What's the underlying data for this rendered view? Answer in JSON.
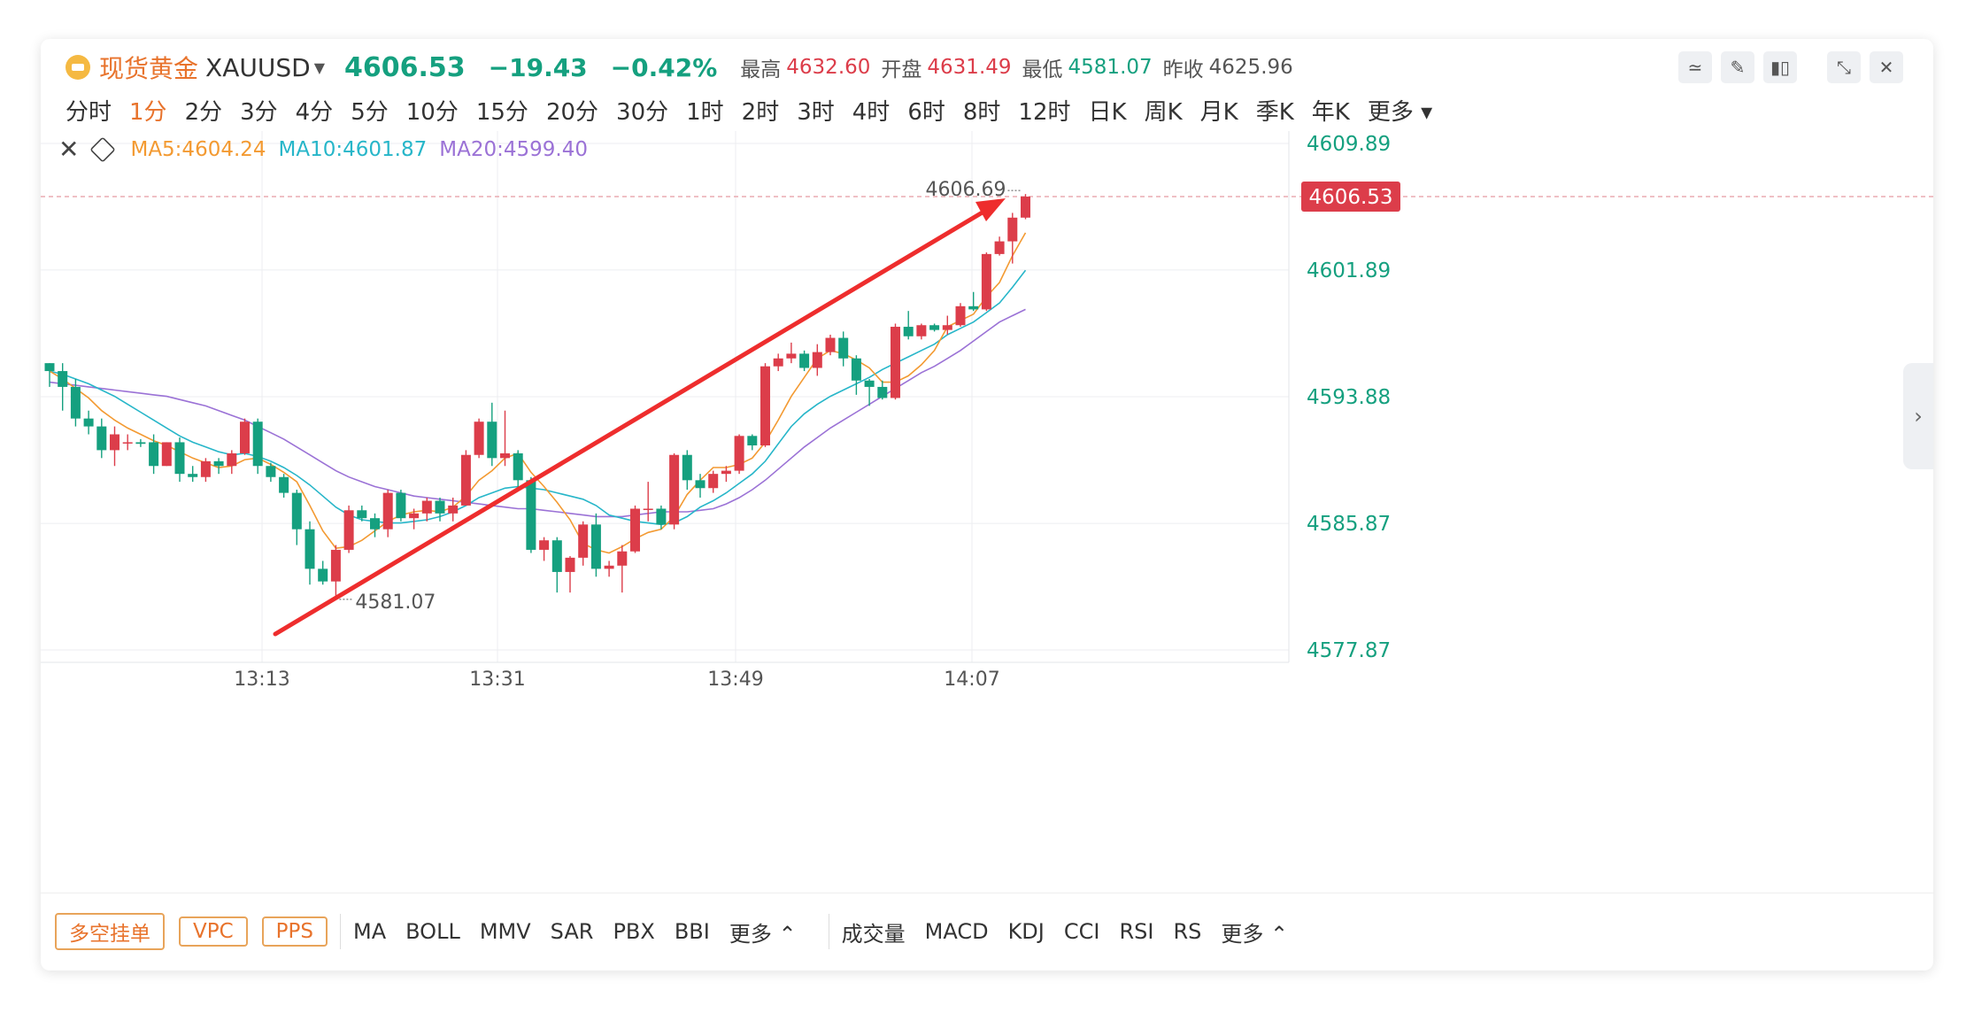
{
  "header": {
    "name": "现货黄金",
    "symbol": "XAUUSD",
    "price": "4606.53",
    "change": "−19.43",
    "change_pct": "−0.42%",
    "high_label": "最高",
    "high": "4632.60",
    "open_label": "开盘",
    "open": "4631.49",
    "low_label": "最低",
    "low": "4581.07",
    "prev_label": "昨收",
    "prev": "4625.96"
  },
  "periods": [
    "分时",
    "1分",
    "2分",
    "3分",
    "4分",
    "5分",
    "10分",
    "15分",
    "20分",
    "30分",
    "1时",
    "2时",
    "3时",
    "4时",
    "6时",
    "8时",
    "12时",
    "日K",
    "周K",
    "月K",
    "季K",
    "年K",
    "更多"
  ],
  "active_period": "1分",
  "ma_legend": {
    "ma5": "MA5:4604.24",
    "ma10": "MA10:4601.87",
    "ma20": "MA20:4599.40"
  },
  "bottom": {
    "buttons": [
      "多空挂单",
      "VPC",
      "PPS"
    ],
    "main_indicators": [
      "MA",
      "BOLL",
      "MMV",
      "SAR",
      "PBX",
      "BBI",
      "更多 ⌃"
    ],
    "sub_indicators": [
      "成交量",
      "MACD",
      "KDJ",
      "CCI",
      "RSI",
      "RS",
      "更多 ⌃"
    ]
  },
  "colors": {
    "up": "#dc3d4a",
    "down": "#15a07f",
    "ma5": "#f39a32",
    "ma10": "#27b6c9",
    "ma20": "#9b72d6",
    "arrow": "#ee2d2d"
  },
  "chart_data": {
    "type": "candlestick",
    "y_ticks": [
      "4609.89",
      "4601.89",
      "4593.88",
      "4585.87",
      "4577.87"
    ],
    "x_ticks": [
      "13:13",
      "13:31",
      "13:49",
      "14:07"
    ],
    "ylim": [
      4577.87,
      4609.89
    ],
    "current_price_label": "4606.53",
    "high_marker": "4606.69",
    "low_marker": "4581.07",
    "candles": [
      [
        4596,
        4596,
        4594.5,
        4595.5
      ],
      [
        4595.5,
        4596,
        4593,
        4594.5
      ],
      [
        4594.5,
        4595,
        4592,
        4592.5
      ],
      [
        4592.5,
        4593,
        4591.5,
        4592
      ],
      [
        4592,
        4592.5,
        4590,
        4590.5
      ],
      [
        4590.5,
        4592,
        4589.5,
        4591.5
      ],
      [
        4591,
        4591.5,
        4590.5,
        4591
      ],
      [
        4591,
        4591.2,
        4590.7,
        4590.9
      ],
      [
        4591,
        4591.5,
        4589,
        4589.5
      ],
      [
        4589.5,
        4591,
        4589.5,
        4591
      ],
      [
        4591,
        4591.3,
        4588.5,
        4589
      ],
      [
        4589,
        4589.5,
        4588.5,
        4588.8
      ],
      [
        4588.8,
        4590,
        4588.5,
        4589.8
      ],
      [
        4589.8,
        4590,
        4589,
        4589.5
      ],
      [
        4589.5,
        4590.5,
        4589,
        4590.3
      ],
      [
        4590.3,
        4592.5,
        4590.2,
        4592.3
      ],
      [
        4592.3,
        4592.5,
        4589,
        4589.5
      ],
      [
        4589.5,
        4589.7,
        4588.5,
        4588.8
      ],
      [
        4588.8,
        4589,
        4587.5,
        4587.8
      ],
      [
        4587.8,
        4588,
        4584.5,
        4585.5
      ],
      [
        4585.5,
        4586,
        4582,
        4583
      ],
      [
        4583,
        4583.5,
        4582,
        4582.2
      ],
      [
        4582.2,
        4584.5,
        4581.07,
        4584.2
      ],
      [
        4584.2,
        4587,
        4584,
        4586.7
      ],
      [
        4586.7,
        4587,
        4586,
        4586.2
      ],
      [
        4586.2,
        4586.5,
        4585,
        4585.5
      ],
      [
        4585.5,
        4588,
        4585,
        4587.8
      ],
      [
        4587.8,
        4588,
        4586,
        4586.2
      ],
      [
        4586.2,
        4586.8,
        4585.5,
        4586.5
      ],
      [
        4586.5,
        4587.5,
        4586,
        4587.3
      ],
      [
        4587.3,
        4587.5,
        4586,
        4586.5
      ],
      [
        4586.5,
        4587.5,
        4586,
        4587
      ],
      [
        4587,
        4590.5,
        4587,
        4590.2
      ],
      [
        4590.2,
        4592.5,
        4590,
        4592.3
      ],
      [
        4592.3,
        4593.5,
        4589.5,
        4590
      ],
      [
        4590,
        4593,
        4589.5,
        4590.3
      ],
      [
        4590.3,
        4590.5,
        4588,
        4588.6
      ],
      [
        4588.6,
        4588.8,
        4584,
        4584.2
      ],
      [
        4584.2,
        4585,
        4583.5,
        4584.8
      ],
      [
        4584.8,
        4585,
        4581.5,
        4582.8
      ],
      [
        4582.8,
        4583.8,
        4581.5,
        4583.7
      ],
      [
        4583.7,
        4586,
        4583.2,
        4585.8
      ],
      [
        4585.8,
        4586.5,
        4582.5,
        4583
      ],
      [
        4583,
        4583.5,
        4582.5,
        4583.2
      ],
      [
        4583.2,
        4584.5,
        4581.5,
        4584.1
      ],
      [
        4584.1,
        4587,
        4584,
        4586.8
      ],
      [
        4586.8,
        4588.5,
        4586,
        4586.8
      ],
      [
        4586.8,
        4587,
        4585.5,
        4585.8
      ],
      [
        4585.8,
        4590.3,
        4585.5,
        4590.2
      ],
      [
        4590.2,
        4590.5,
        4588,
        4588.6
      ],
      [
        4588.6,
        4589,
        4587.5,
        4588.1
      ],
      [
        4588.1,
        4589.2,
        4587.8,
        4589
      ],
      [
        4589,
        4589.5,
        4588.5,
        4589.2
      ],
      [
        4589.2,
        4591.5,
        4589,
        4591.4
      ],
      [
        4591.4,
        4591.5,
        4590.5,
        4590.8
      ],
      [
        4590.8,
        4596,
        4590.7,
        4595.8
      ],
      [
        4595.8,
        4596.6,
        4595.5,
        4596.3
      ],
      [
        4596.3,
        4597.3,
        4596,
        4596.6
      ],
      [
        4596.6,
        4596.8,
        4595.5,
        4595.7
      ],
      [
        4595.7,
        4597.2,
        4595.2,
        4596.7
      ],
      [
        4596.7,
        4597.8,
        4596.5,
        4597.6
      ],
      [
        4597.6,
        4598,
        4595.8,
        4596.3
      ],
      [
        4596.3,
        4596.5,
        4594,
        4594.9
      ],
      [
        4594.9,
        4595,
        4593.3,
        4594.5
      ],
      [
        4594.5,
        4594.9,
        4593.7,
        4593.8
      ],
      [
        4593.8,
        4598.5,
        4593.7,
        4598.3
      ],
      [
        4598.3,
        4599.3,
        4597.5,
        4597.7
      ],
      [
        4597.7,
        4598.5,
        4597.5,
        4598.4
      ],
      [
        4598.4,
        4598.5,
        4598,
        4598.1
      ],
      [
        4598.1,
        4599,
        4597.8,
        4598.4
      ],
      [
        4598.4,
        4599.8,
        4598.3,
        4599.6
      ],
      [
        4599.6,
        4600.5,
        4599.3,
        4599.4
      ],
      [
        4599.4,
        4603,
        4599.3,
        4602.9
      ],
      [
        4602.9,
        4604,
        4602.8,
        4603.7
      ],
      [
        4603.7,
        4605.5,
        4602.3,
        4605.2
      ],
      [
        4605.2,
        4606.69,
        4605.1,
        4606.53
      ]
    ],
    "ma5": [
      4595.5,
      4595,
      4594.4,
      4593.8,
      4593,
      4592.4,
      4591.9,
      4591.5,
      4591.1,
      4590.8,
      4590.4,
      4590,
      4589.7,
      4589.4,
      4589.5,
      4589.9,
      4590,
      4589.6,
      4589.1,
      4588.5,
      4587,
      4585.4,
      4584.3,
      4584.4,
      4584.8,
      4585.4,
      4586,
      4586.4,
      4586.6,
      4586.7,
      4586.6,
      4586.9,
      4587.6,
      4588.6,
      4589.2,
      4590,
      4590.3,
      4589.1,
      4588.2,
      4587.2,
      4586.1,
      4584.6,
      4584.2,
      4584,
      4584.4,
      4584.9,
      4585.3,
      4585.5,
      4586.3,
      4587.7,
      4588.6,
      4589.4,
      4589.4,
      4589.6,
      4590,
      4591,
      4592.4,
      4593.9,
      4595.1,
      4596.3,
      4596.8,
      4596.6,
      4596.2,
      4595.7,
      4594.8,
      4594.8,
      4595.2,
      4595.9,
      4596.8,
      4598.3,
      4598.7,
      4599.1,
      4600.2,
      4601.1,
      4602.8,
      4604.24
    ],
    "ma10": [
      4595.5,
      4595.3,
      4595,
      4594.7,
      4594.3,
      4593.9,
      4593.4,
      4592.9,
      4592.4,
      4591.9,
      4591.4,
      4591,
      4590.7,
      4590.4,
      4590.2,
      4590.3,
      4590.1,
      4589.8,
      4589.4,
      4588.9,
      4588.3,
      4587.6,
      4586.9,
      4586.4,
      4586.1,
      4586,
      4585.9,
      4585.9,
      4586,
      4586.1,
      4586.3,
      4586.6,
      4587,
      4587.5,
      4587.8,
      4588.1,
      4588.2,
      4588.1,
      4588,
      4587.8,
      4587.6,
      4587.4,
      4587,
      4586.4,
      4586.2,
      4586,
      4585.9,
      4585.8,
      4585.9,
      4586.3,
      4586.9,
      4587.3,
      4587.8,
      4588.4,
      4589,
      4589.8,
      4590.9,
      4592,
      4592.8,
      4593.4,
      4593.9,
      4594.3,
      4594.7,
      4595.1,
      4595.6,
      4596,
      4596.4,
      4596.8,
      4597.2,
      4597.8,
      4598.2,
      4598.6,
      4599.2,
      4599.8,
      4600.8,
      4601.87
    ],
    "ma20": [
      4594.8,
      4594.7,
      4594.6,
      4594.5,
      4594.4,
      4594.3,
      4594.2,
      4594.1,
      4594,
      4593.9,
      4593.7,
      4593.5,
      4593.3,
      4593,
      4592.7,
      4592.4,
      4592,
      4591.6,
      4591.2,
      4590.7,
      4590.2,
      4589.7,
      4589.2,
      4588.8,
      4588.5,
      4588.2,
      4588,
      4587.8,
      4587.6,
      4587.5,
      4587.4,
      4587.3,
      4587.2,
      4587.1,
      4587,
      4586.9,
      4586.8,
      4586.8,
      4586.7,
      4586.6,
      4586.5,
      4586.4,
      4586.3,
      4586.3,
      4586.3,
      4586.4,
      4586.5,
      4586.6,
      4586.6,
      4586.6,
      4586.7,
      4586.8,
      4587.1,
      4587.5,
      4588,
      4588.6,
      4589.3,
      4590,
      4590.7,
      4591.3,
      4591.9,
      4592.4,
      4592.9,
      4593.4,
      4593.9,
      4594.4,
      4594.9,
      4595.4,
      4595.8,
      4596.3,
      4596.8,
      4597.4,
      4598,
      4598.6,
      4599,
      4599.4
    ]
  }
}
